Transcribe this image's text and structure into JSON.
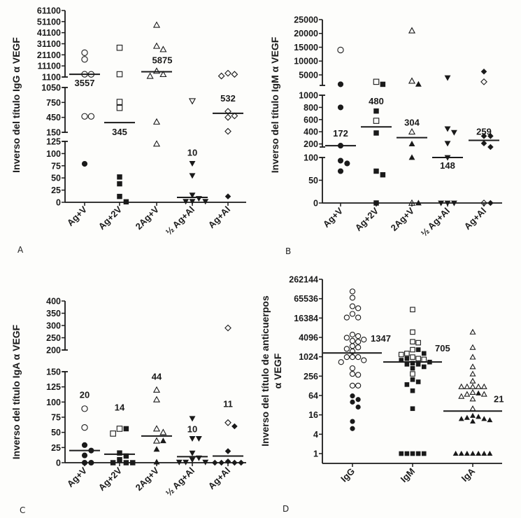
{
  "chart_data": [
    {
      "panel": "A",
      "type": "scatter",
      "title": "",
      "ylabel": "Inverso del título IgG α VEGF",
      "xlabel": "",
      "y_axis_segments": [
        {
          "ticks": [
            0,
            25,
            50,
            75,
            100,
            125
          ],
          "range": [
            0,
            125
          ]
        },
        {
          "ticks": [
            150,
            450,
            750,
            1050
          ],
          "range": [
            150,
            1050
          ]
        },
        {
          "ticks": [
            1100,
            11100,
            21100,
            31100,
            41100,
            51100,
            61100
          ],
          "range": [
            1100,
            61100
          ]
        }
      ],
      "categories": [
        "Ag+V",
        "Ag+2V",
        "2Ag+V",
        "½ Ag+Al",
        "Ag+Al"
      ],
      "series": [
        {
          "category": "Ag+V",
          "marker": "circle",
          "median": 3557,
          "median_label": "3557",
          "open": [
            23000,
            17000,
            3500,
            3600,
            470,
            470
          ],
          "filled": [
            79
          ]
        },
        {
          "category": "Ag+2V",
          "marker": "square",
          "median": 345,
          "median_label": "345",
          "open": [
            27500,
            3600,
            640,
            760
          ],
          "filled": [
            52,
            38,
            12,
            1
          ]
        },
        {
          "category": "2Ag+V",
          "marker": "triangle-up",
          "median": 5875,
          "median_label": "5875",
          "open": [
            48000,
            29000,
            26000,
            6500,
            1900,
            3500,
            360,
            120
          ],
          "filled": []
        },
        {
          "category": "½ Ag+Al",
          "marker": "triangle-down",
          "median": 10,
          "median_label": "10",
          "open": [
            780
          ],
          "filled": [
            80,
            55,
            15,
            2,
            2,
            2,
            8
          ]
        },
        {
          "category": "Ag+Al",
          "marker": "diamond",
          "median": 532,
          "median_label": "532",
          "open": [
            3500,
            2000,
            4500,
            570,
            450,
            480,
            170
          ],
          "filled": [
            12
          ]
        }
      ]
    },
    {
      "panel": "B",
      "type": "scatter",
      "title": "",
      "ylabel": "Inverso del título IgM α VEGF",
      "xlabel": "",
      "y_axis_segments": [
        {
          "ticks": [
            0,
            50,
            100
          ],
          "range": [
            0,
            100
          ]
        },
        {
          "ticks": [
            200,
            400,
            600,
            800,
            1000
          ],
          "range": [
            150,
            1000
          ]
        },
        {
          "ticks": [
            5000,
            10000,
            15000,
            20000,
            25000
          ],
          "range": [
            1200,
            25000
          ]
        }
      ],
      "categories": [
        "Ag+V",
        "Ag+2V",
        "2Ag+V",
        "½ Ag+Al",
        "Ag+Al"
      ],
      "series": [
        {
          "category": "Ag+V",
          "marker": "circle",
          "median": 172,
          "median_label": "172",
          "open": [
            14000
          ],
          "filled": [
            1600,
            800,
            172,
            93,
            87,
            70
          ]
        },
        {
          "category": "Ag+2V",
          "marker": "square",
          "median": 480,
          "median_label": "480",
          "open": [
            2500,
            580
          ],
          "filled": [
            1600,
            740,
            380,
            70,
            62,
            0
          ]
        },
        {
          "category": "2Ag+V",
          "marker": "triangle-up",
          "median": 304,
          "median_label": "304",
          "open": [
            21000,
            2800,
            400,
            0
          ],
          "filled": [
            1600,
            200,
            100,
            0
          ]
        },
        {
          "category": "½ Ag+Al",
          "marker": "triangle-down",
          "median": 148,
          "median_label": "148",
          "open": [],
          "filled": [
            4000,
            450,
            390,
            210,
            103,
            0,
            0,
            0
          ]
        },
        {
          "category": "Ag+Al",
          "marker": "diamond",
          "median": 259,
          "median_label": "259",
          "open": [
            2500,
            0
          ],
          "filled": [
            6200,
            330,
            330,
            210,
            150,
            0
          ]
        }
      ]
    },
    {
      "panel": "C",
      "type": "scatter",
      "title": "",
      "ylabel": "Inverso del título IgA α VEGF",
      "xlabel": "",
      "y_axis_segments": [
        {
          "ticks": [
            0,
            25,
            50,
            75,
            100,
            125,
            150
          ],
          "range": [
            0,
            150
          ]
        },
        {
          "ticks": [
            200,
            250,
            300,
            350,
            400
          ],
          "range": [
            200,
            400
          ]
        }
      ],
      "categories": [
        "Ag+V",
        "Ag+2V",
        "2Ag+V",
        "½ Ag+Al",
        "Ag+Al"
      ],
      "series": [
        {
          "category": "Ag+V",
          "marker": "circle",
          "median": 20,
          "median_label": "20",
          "open": [
            89,
            58
          ],
          "filled": [
            29,
            12,
            20,
            0,
            0
          ]
        },
        {
          "category": "Ag+2V",
          "marker": "square",
          "median": 14,
          "median_label": "14",
          "open": [
            56,
            48
          ],
          "filled": [
            56,
            16,
            11,
            5,
            0,
            0,
            0
          ]
        },
        {
          "category": "2Ag+V",
          "marker": "triangle-up",
          "median": 44,
          "median_label": "44",
          "open": [
            120,
            104,
            56,
            50,
            36
          ],
          "filled": [
            36,
            22,
            1
          ]
        },
        {
          "category": "½ Ag+Al",
          "marker": "triangle-down",
          "median": 10,
          "median_label": "10",
          "open": [],
          "filled": [
            73,
            40,
            40,
            16,
            5,
            1,
            1,
            1,
            8
          ]
        },
        {
          "category": "Ag+Al",
          "marker": "diamond",
          "median": 11,
          "median_label": "11",
          "open": [
            290,
            66
          ],
          "filled": [
            60,
            19,
            0,
            0,
            0,
            0,
            2
          ]
        }
      ]
    },
    {
      "panel": "D",
      "type": "scatter",
      "title": "",
      "ylabel": "Inverso del título de anticuerpos α VEGF",
      "xlabel": "",
      "yscale": "log2",
      "ylim": [
        1,
        262144
      ],
      "yticks": [
        1,
        4,
        16,
        64,
        256,
        1024,
        4096,
        16384,
        65536,
        262144
      ],
      "categories": [
        "IgG",
        "IgM",
        "IgA"
      ],
      "series": [
        {
          "category": "IgG",
          "marker": "circle",
          "median": 1347,
          "median_label": "1347",
          "open": [
            110000,
            70000,
            38000,
            33000,
            22000,
            17000,
            17000,
            5000,
            4500,
            4000,
            3500,
            3000,
            3200,
            2200,
            2000,
            1800,
            1500,
            1000,
            1000,
            1000,
            800,
            700,
            450,
            300,
            280,
            130,
            130
          ],
          "filled": [
            62,
            48,
            40,
            28,
            10,
            6
          ]
        },
        {
          "category": "IgM",
          "marker": "square",
          "median": 705,
          "median_label": "705",
          "open": [
            30000,
            6000,
            3000,
            2800,
            1700,
            1300,
            1200,
            1000,
            900,
            850,
            300
          ],
          "filled": [
            1700,
            1300,
            900,
            800,
            700,
            650,
            600,
            600,
            500,
            450,
            200,
            170,
            140,
            90,
            25,
            1,
            1,
            1,
            1,
            1
          ]
        },
        {
          "category": "IgA",
          "marker": "triangle-up",
          "median": 21,
          "median_label": "21",
          "open": [
            6000,
            2000,
            1000,
            500,
            300,
            180,
            120,
            120,
            120,
            120,
            120,
            80,
            70,
            70,
            60,
            50,
            25
          ],
          "filled": [
            75,
            15,
            14,
            13,
            12,
            12,
            11,
            10,
            1,
            1,
            1,
            1,
            1,
            1,
            1
          ]
        }
      ]
    }
  ],
  "panel_labels": [
    "A",
    "B",
    "C",
    "D"
  ],
  "colors": {
    "ink": "#1a1a1a",
    "background": "#fdfdfb"
  }
}
